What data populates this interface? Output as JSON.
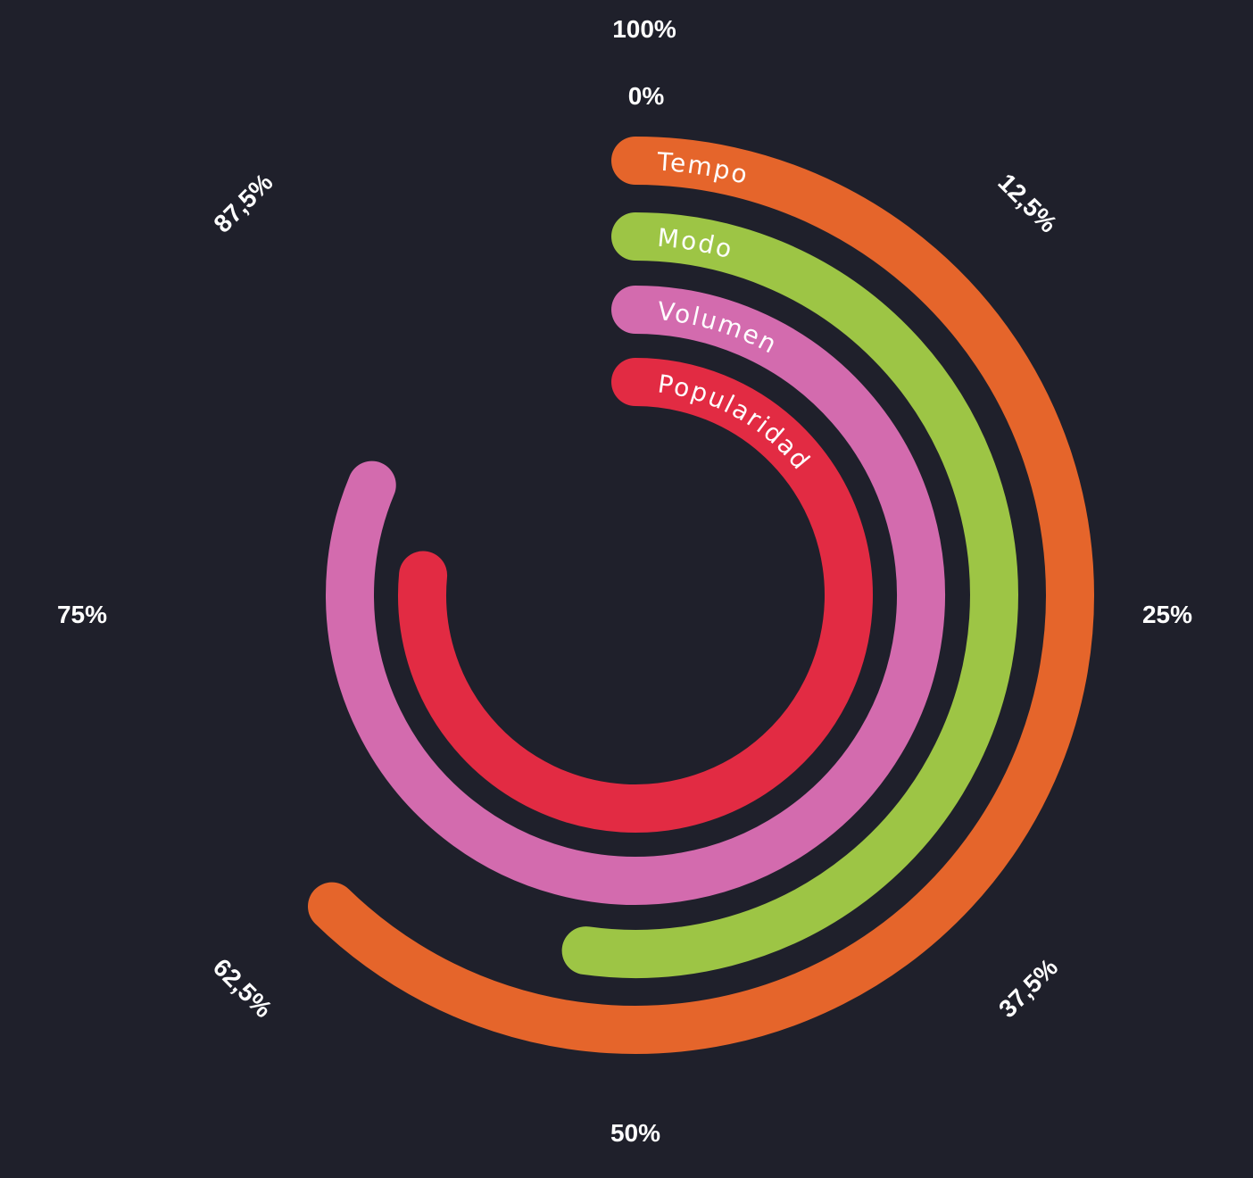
{
  "chart_data": {
    "type": "radial-bar",
    "axis_ticks": [
      "0%",
      "12,5%",
      "25%",
      "37,5%",
      "50%",
      "62,5%",
      "75%",
      "87,5%",
      "100%"
    ],
    "axis_tick_values": [
      0,
      12.5,
      25,
      37.5,
      50,
      62.5,
      75,
      87.5,
      100
    ],
    "ylim": [
      0,
      100
    ],
    "series": [
      {
        "name": "Tempo",
        "value": 62.3,
        "color": "#e5652b"
      },
      {
        "name": "Modo",
        "value": 52.2,
        "color": "#9dc545"
      },
      {
        "name": "Volumen",
        "value": 81.3,
        "color": "#d36bae"
      },
      {
        "name": "Popularidad",
        "value": 76.5,
        "color": "#e22b43"
      }
    ],
    "background": "#1f202b"
  }
}
